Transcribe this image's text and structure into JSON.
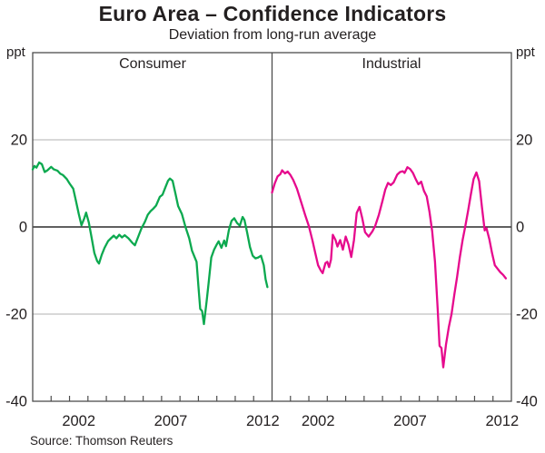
{
  "chart_data": {
    "type": "line",
    "title": "Euro Area – Confidence Indicators",
    "subtitle": "Deviation from long-run average",
    "unit_label": "ppt",
    "source": "Source: Thomson Reuters",
    "ylim": [
      -40,
      40
    ],
    "y_gridlines": [
      20,
      -20
    ],
    "zero_line": 0,
    "y_tick_labels": [
      {
        "v": 20,
        "label": "20"
      },
      {
        "v": 0,
        "label": "0"
      },
      {
        "v": -20,
        "label": "-20"
      },
      {
        "v": -40,
        "label": "-40"
      }
    ],
    "x_domain": [
      2000,
      2013
    ],
    "x_tick_interval": 1,
    "x_labels": [
      {
        "label": "2002",
        "center": 2002.5
      },
      {
        "label": "2007",
        "center": 2007.5
      },
      {
        "label": "2012",
        "center": 2012.5
      }
    ],
    "grid_color": "#b2b2b2",
    "frame_color": "#4d4d4d",
    "panels": [
      {
        "label": "Consumer",
        "color": "#0ca94f",
        "series": [
          [
            2000.0,
            13.2
          ],
          [
            2000.1,
            14.0
          ],
          [
            2000.2,
            13.6
          ],
          [
            2000.35,
            14.8
          ],
          [
            2000.5,
            14.4
          ],
          [
            2000.65,
            12.6
          ],
          [
            2000.8,
            13.0
          ],
          [
            2001.0,
            13.8
          ],
          [
            2001.15,
            13.2
          ],
          [
            2001.35,
            12.9
          ],
          [
            2001.5,
            12.2
          ],
          [
            2001.65,
            11.9
          ],
          [
            2001.85,
            11.0
          ],
          [
            2002.0,
            10.0
          ],
          [
            2002.2,
            8.8
          ],
          [
            2002.35,
            6.0
          ],
          [
            2002.5,
            3.0
          ],
          [
            2002.65,
            0.4
          ],
          [
            2002.8,
            2.0
          ],
          [
            2002.9,
            3.3
          ],
          [
            2003.05,
            1.0
          ],
          [
            2003.2,
            -2.5
          ],
          [
            2003.35,
            -6.0
          ],
          [
            2003.5,
            -7.8
          ],
          [
            2003.6,
            -8.4
          ],
          [
            2003.75,
            -6.4
          ],
          [
            2003.9,
            -4.8
          ],
          [
            2004.1,
            -3.2
          ],
          [
            2004.25,
            -2.6
          ],
          [
            2004.4,
            -2.0
          ],
          [
            2004.55,
            -2.6
          ],
          [
            2004.7,
            -1.8
          ],
          [
            2004.85,
            -2.4
          ],
          [
            2005.0,
            -1.9
          ],
          [
            2005.2,
            -2.6
          ],
          [
            2005.4,
            -3.6
          ],
          [
            2005.55,
            -4.2
          ],
          [
            2005.7,
            -2.6
          ],
          [
            2005.9,
            -0.4
          ],
          [
            2006.1,
            1.2
          ],
          [
            2006.25,
            2.8
          ],
          [
            2006.4,
            3.6
          ],
          [
            2006.55,
            4.2
          ],
          [
            2006.7,
            4.9
          ],
          [
            2006.9,
            6.9
          ],
          [
            2007.05,
            7.4
          ],
          [
            2007.2,
            9.0
          ],
          [
            2007.35,
            10.6
          ],
          [
            2007.45,
            11.1
          ],
          [
            2007.6,
            10.6
          ],
          [
            2007.75,
            7.7
          ],
          [
            2007.9,
            4.8
          ],
          [
            2008.1,
            3.0
          ],
          [
            2008.3,
            0.0
          ],
          [
            2008.5,
            -2.6
          ],
          [
            2008.65,
            -5.4
          ],
          [
            2008.8,
            -7.0
          ],
          [
            2008.9,
            -8.0
          ],
          [
            2009.0,
            -13.5
          ],
          [
            2009.1,
            -18.8
          ],
          [
            2009.2,
            -19.3
          ],
          [
            2009.3,
            -22.3
          ],
          [
            2009.45,
            -17.0
          ],
          [
            2009.55,
            -13.0
          ],
          [
            2009.7,
            -7.0
          ],
          [
            2009.85,
            -5.2
          ],
          [
            2010.0,
            -4.0
          ],
          [
            2010.1,
            -3.3
          ],
          [
            2010.25,
            -4.8
          ],
          [
            2010.4,
            -3.1
          ],
          [
            2010.5,
            -4.4
          ],
          [
            2010.65,
            -0.8
          ],
          [
            2010.8,
            1.4
          ],
          [
            2010.95,
            2.0
          ],
          [
            2011.1,
            0.9
          ],
          [
            2011.25,
            0.3
          ],
          [
            2011.4,
            2.3
          ],
          [
            2011.5,
            1.6
          ],
          [
            2011.65,
            -1.3
          ],
          [
            2011.8,
            -4.6
          ],
          [
            2011.95,
            -6.6
          ],
          [
            2012.1,
            -7.2
          ],
          [
            2012.25,
            -7.0
          ],
          [
            2012.4,
            -6.6
          ],
          [
            2012.55,
            -8.8
          ],
          [
            2012.65,
            -12.0
          ],
          [
            2012.75,
            -13.8
          ]
        ]
      },
      {
        "label": "Industrial",
        "color": "#e60a8d",
        "series": [
          [
            2000.0,
            7.9
          ],
          [
            2000.15,
            10.0
          ],
          [
            2000.3,
            11.6
          ],
          [
            2000.45,
            12.1
          ],
          [
            2000.55,
            13.0
          ],
          [
            2000.7,
            12.3
          ],
          [
            2000.85,
            12.7
          ],
          [
            2001.0,
            11.9
          ],
          [
            2001.15,
            10.8
          ],
          [
            2001.35,
            8.8
          ],
          [
            2001.5,
            6.8
          ],
          [
            2001.65,
            4.8
          ],
          [
            2001.8,
            2.7
          ],
          [
            2002.0,
            0.2
          ],
          [
            2002.2,
            -3.2
          ],
          [
            2002.35,
            -6.0
          ],
          [
            2002.5,
            -8.8
          ],
          [
            2002.65,
            -10.0
          ],
          [
            2002.75,
            -10.6
          ],
          [
            2002.9,
            -8.3
          ],
          [
            2003.0,
            -8.0
          ],
          [
            2003.1,
            -9.2
          ],
          [
            2003.2,
            -7.5
          ],
          [
            2003.3,
            -1.8
          ],
          [
            2003.45,
            -3.0
          ],
          [
            2003.55,
            -4.5
          ],
          [
            2003.7,
            -3.0
          ],
          [
            2003.85,
            -5.2
          ],
          [
            2004.0,
            -2.2
          ],
          [
            2004.15,
            -4.0
          ],
          [
            2004.3,
            -6.9
          ],
          [
            2004.45,
            -3.0
          ],
          [
            2004.6,
            3.2
          ],
          [
            2004.75,
            4.6
          ],
          [
            2004.9,
            2.0
          ],
          [
            2005.05,
            -1.2
          ],
          [
            2005.25,
            -2.2
          ],
          [
            2005.45,
            -1.0
          ],
          [
            2005.6,
            0.2
          ],
          [
            2005.8,
            2.8
          ],
          [
            2006.0,
            6.0
          ],
          [
            2006.15,
            8.6
          ],
          [
            2006.3,
            10.1
          ],
          [
            2006.45,
            9.6
          ],
          [
            2006.6,
            10.2
          ],
          [
            2006.8,
            12.0
          ],
          [
            2006.95,
            12.6
          ],
          [
            2007.1,
            12.8
          ],
          [
            2007.2,
            12.4
          ],
          [
            2007.35,
            13.7
          ],
          [
            2007.5,
            13.3
          ],
          [
            2007.65,
            12.4
          ],
          [
            2007.8,
            11.0
          ],
          [
            2007.95,
            9.8
          ],
          [
            2008.1,
            10.4
          ],
          [
            2008.25,
            8.3
          ],
          [
            2008.4,
            7.0
          ],
          [
            2008.55,
            3.5
          ],
          [
            2008.7,
            -1.0
          ],
          [
            2008.85,
            -8.0
          ],
          [
            2009.0,
            -19.0
          ],
          [
            2009.1,
            -27.3
          ],
          [
            2009.2,
            -27.8
          ],
          [
            2009.3,
            -32.2
          ],
          [
            2009.45,
            -27.0
          ],
          [
            2009.6,
            -23.0
          ],
          [
            2009.75,
            -20.0
          ],
          [
            2009.9,
            -15.5
          ],
          [
            2010.05,
            -11.5
          ],
          [
            2010.2,
            -7.0
          ],
          [
            2010.35,
            -3.0
          ],
          [
            2010.5,
            0.2
          ],
          [
            2010.65,
            3.8
          ],
          [
            2010.8,
            7.5
          ],
          [
            2010.95,
            11.0
          ],
          [
            2011.1,
            12.5
          ],
          [
            2011.25,
            10.5
          ],
          [
            2011.4,
            4.5
          ],
          [
            2011.55,
            -0.8
          ],
          [
            2011.65,
            -0.3
          ],
          [
            2011.8,
            -2.8
          ],
          [
            2011.95,
            -6.0
          ],
          [
            2012.1,
            -8.8
          ],
          [
            2012.25,
            -9.6
          ],
          [
            2012.4,
            -10.4
          ],
          [
            2012.55,
            -11.0
          ],
          [
            2012.7,
            -11.8
          ]
        ]
      }
    ]
  }
}
